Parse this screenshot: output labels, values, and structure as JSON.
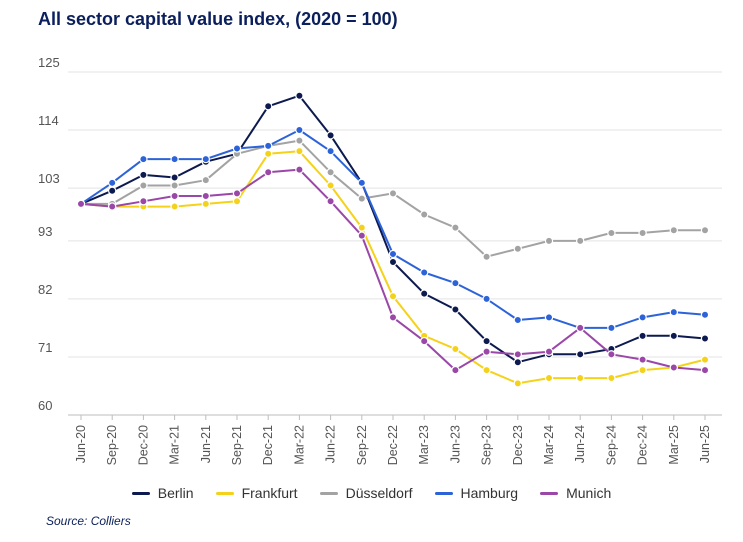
{
  "title": "All sector capital value index, (2020 = 100)",
  "source": "Source: Colliers",
  "colors": {
    "Berlin": "#0d1a4f",
    "Frankfurt": "#f5d21a",
    "Düsseldorf": "#a3a3a3",
    "Hamburg": "#2d63d8",
    "Munich": "#9a47a8"
  },
  "chart_data": {
    "type": "line",
    "title": "All sector capital value index, (2020 = 100)",
    "xlabel": "",
    "ylabel": "",
    "ylim": [
      60,
      125
    ],
    "yticks": [
      60,
      71,
      82,
      93,
      103,
      114,
      125
    ],
    "grid": "horizontal",
    "legend_position": "bottom",
    "x": [
      "Jun-20",
      "Sep-20",
      "Dec-20",
      "Mar-21",
      "Jun-21",
      "Sep-21",
      "Dec-21",
      "Mar-22",
      "Jun-22",
      "Sep-22",
      "Dec-22",
      "Mar-23",
      "Jun-23",
      "Sep-23",
      "Dec-23",
      "Mar-24",
      "Jun-24",
      "Sep-24",
      "Dec-24",
      "Mar-25",
      "Jun-25"
    ],
    "series": [
      {
        "name": "Berlin",
        "values": [
          100,
          102.5,
          105.5,
          105,
          108,
          109.5,
          118.5,
          120.5,
          113,
          104,
          89,
          83,
          80,
          74,
          70,
          71.5,
          71.5,
          72.5,
          75,
          75,
          74.5
        ]
      },
      {
        "name": "Frankfurt",
        "values": [
          100,
          99.5,
          99.5,
          99.5,
          100,
          100.5,
          109.5,
          110,
          103.5,
          95.5,
          82.5,
          75,
          72.5,
          68.5,
          66,
          67,
          67,
          67,
          68.5,
          69,
          70.5
        ]
      },
      {
        "name": "Düsseldorf",
        "values": [
          100,
          100,
          103.5,
          103.5,
          104.5,
          109.5,
          111,
          112,
          106,
          101,
          102,
          98,
          95.5,
          90,
          91.5,
          93,
          93,
          94.5,
          94.5,
          95,
          95
        ]
      },
      {
        "name": "Hamburg",
        "values": [
          100,
          104,
          108.5,
          108.5,
          108.5,
          110.5,
          111,
          114,
          110,
          104,
          90.5,
          87,
          85,
          82,
          78,
          78.5,
          76.5,
          76.5,
          78.5,
          79.5,
          79
        ]
      },
      {
        "name": "Munich",
        "values": [
          100,
          99.5,
          100.5,
          101.5,
          101.5,
          102,
          106,
          106.5,
          100.5,
          94,
          78.5,
          74,
          68.5,
          72,
          71.5,
          72,
          76.5,
          71.5,
          70.5,
          69,
          68.5
        ]
      }
    ]
  }
}
